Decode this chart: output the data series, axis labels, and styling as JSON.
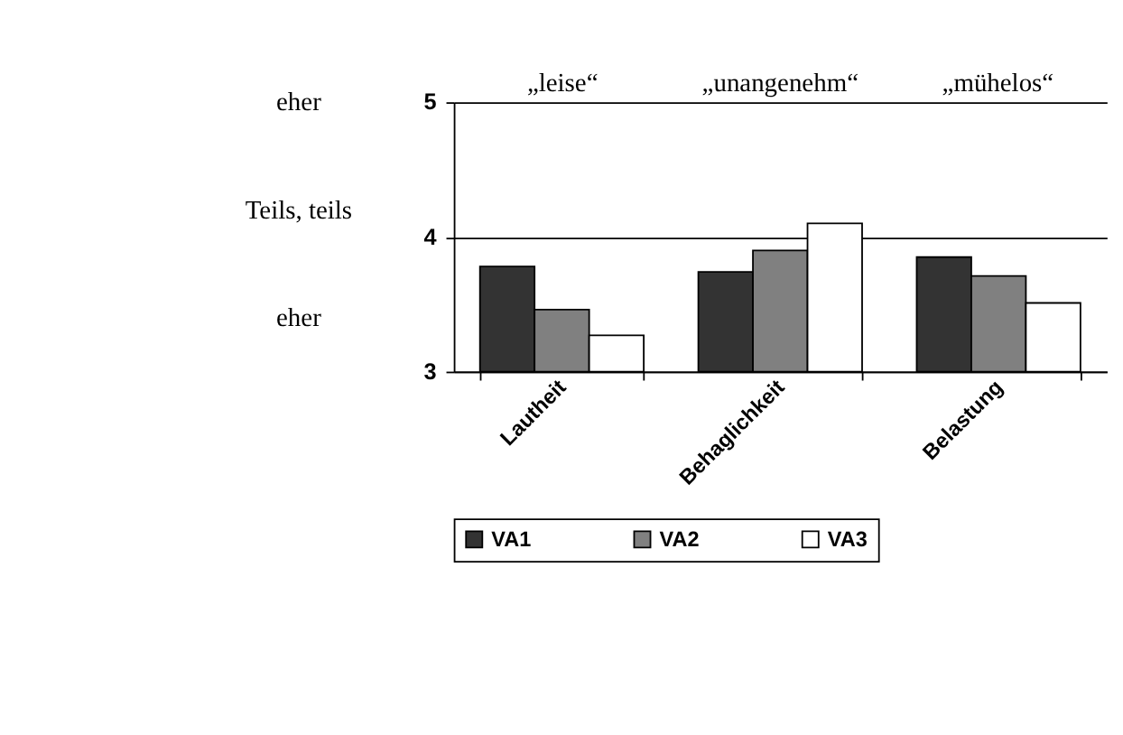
{
  "chart_data": {
    "type": "bar",
    "categories": [
      "Lautheit",
      "Behaglichkeit",
      "Belastung"
    ],
    "series": [
      {
        "name": "VA1",
        "color": "#333333",
        "values": [
          3.78,
          3.74,
          3.85
        ]
      },
      {
        "name": "VA2",
        "color": "#808080",
        "values": [
          3.46,
          3.9,
          3.71
        ]
      },
      {
        "name": "VA3",
        "color": "#ffffff",
        "values": [
          3.27,
          4.1,
          3.51
        ]
      }
    ],
    "ylim": [
      3,
      5
    ],
    "yticks": [
      3,
      4,
      5
    ],
    "grid": "y",
    "legend": "bottom",
    "annotations": [
      "eher",
      "Teils, teils",
      "eher",
      "„leise“",
      "„unangenehm“",
      "„mühelos“"
    ]
  }
}
